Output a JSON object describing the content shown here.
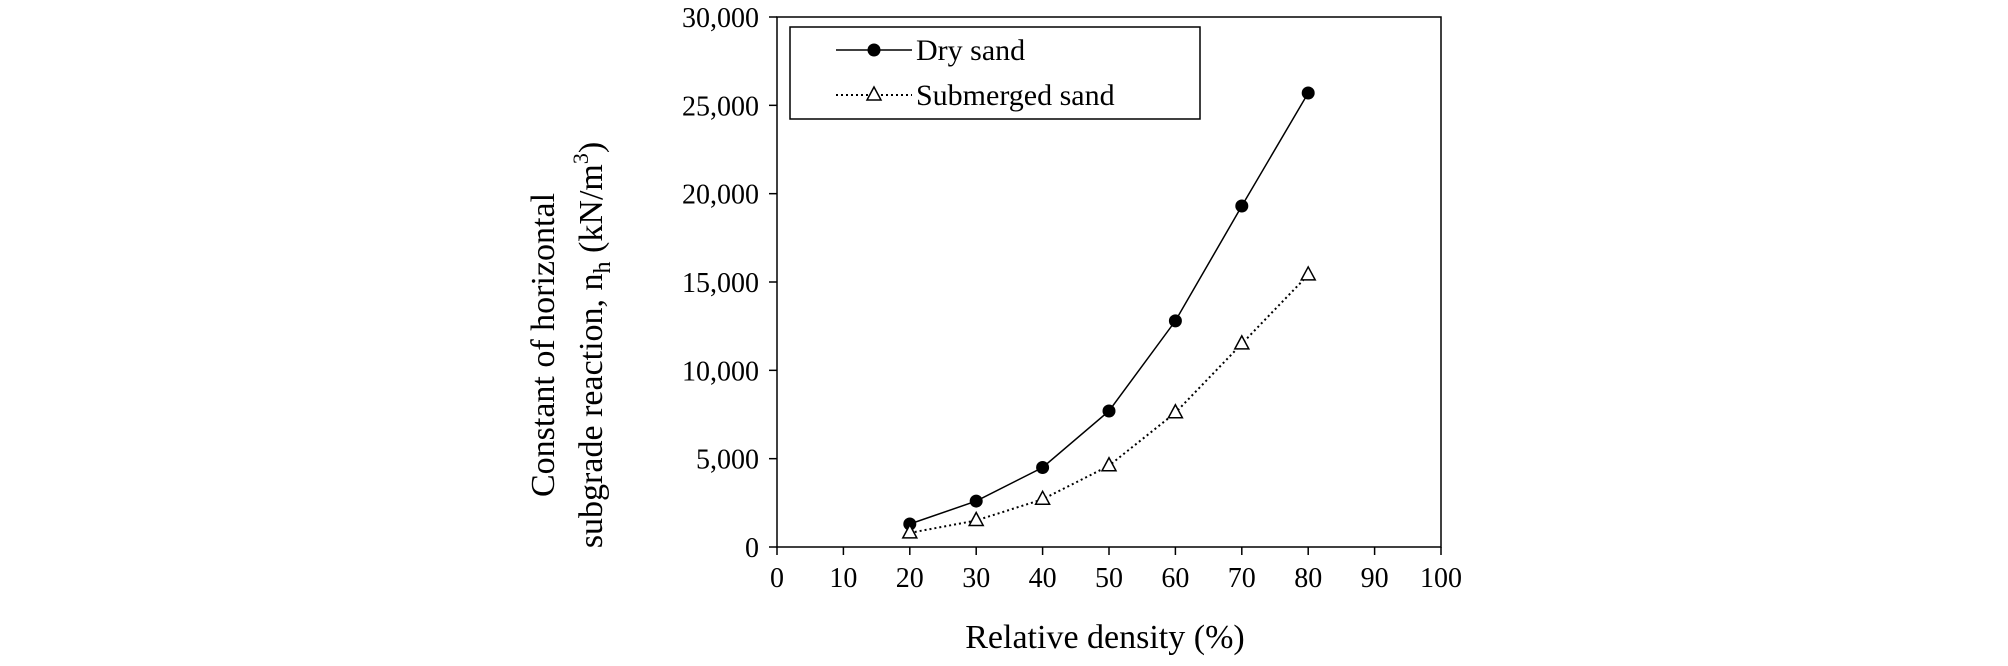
{
  "chart_data": {
    "type": "line",
    "xlabel": "Relative density (%)",
    "ylabel_line1": "Constant of horizontal",
    "ylabel_line2_prefix": "subgrade reaction, n",
    "ylabel_line2_subscript": "h",
    "ylabel_line2_unit": " (kN/m",
    "ylabel_line2_superscript": "3",
    "ylabel_line2_close": ")",
    "xlim": [
      0,
      100
    ],
    "ylim": [
      0,
      30000
    ],
    "x_ticks": [
      0,
      10,
      20,
      30,
      40,
      50,
      60,
      70,
      80,
      90,
      100
    ],
    "y_ticks": [
      0,
      5000,
      10000,
      15000,
      20000,
      25000,
      30000
    ],
    "x_tick_labels": [
      "0",
      "10",
      "20",
      "30",
      "40",
      "50",
      "60",
      "70",
      "80",
      "90",
      "100"
    ],
    "y_tick_labels": [
      "0",
      "5,000",
      "10,000",
      "15,000",
      "20,000",
      "25,000",
      "30,000"
    ],
    "grid": false,
    "legend_position": "top-left",
    "x": [
      20,
      30,
      40,
      50,
      60,
      70,
      80
    ],
    "series": [
      {
        "name": "Dry sand",
        "values": [
          1300,
          2600,
          4500,
          7700,
          12800,
          19300,
          25700
        ],
        "line_style": "solid",
        "marker": "filled-circle",
        "color": "#000000"
      },
      {
        "name": "Submerged sand",
        "values": [
          800,
          1500,
          2700,
          4600,
          7600,
          11500,
          15400
        ],
        "line_style": "dotted",
        "marker": "open-triangle",
        "color": "#000000"
      }
    ]
  }
}
